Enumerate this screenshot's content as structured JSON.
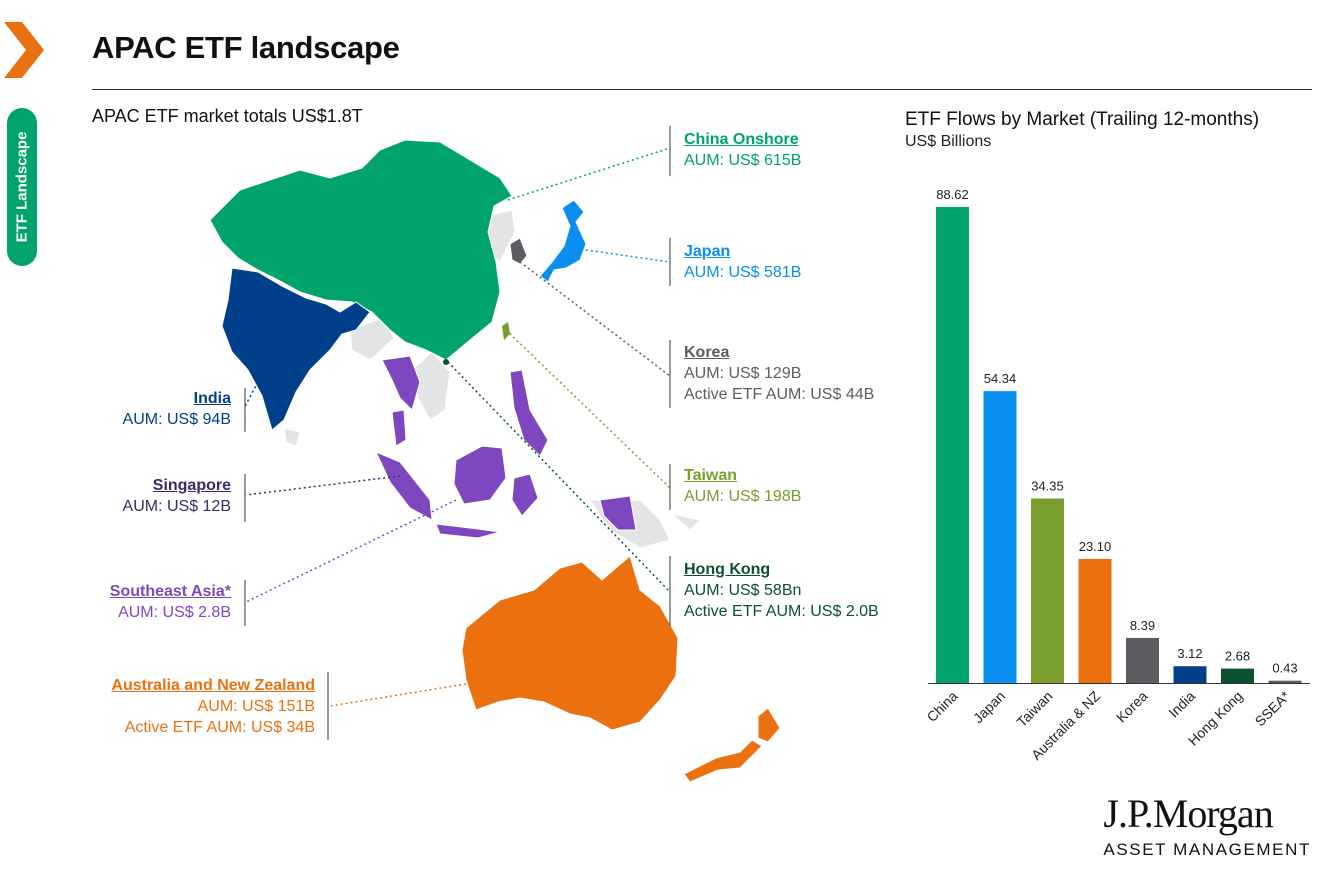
{
  "page": {
    "title": "APAC ETF landscape",
    "side_tab": "ETF Landscape",
    "map_subtitle": "APAC ETF market totals US$1.8T"
  },
  "markets": {
    "china": {
      "name": "China Onshore",
      "aum": "AUM: US$ 615B",
      "color": "#00a36c"
    },
    "japan": {
      "name": "Japan",
      "aum": "AUM: US$ 581B",
      "color": "#0a8ef0"
    },
    "korea": {
      "name": "Korea",
      "aum": "AUM: US$ 129B",
      "active": "Active ETF AUM: US$ 44B",
      "color": "#5b5d61"
    },
    "taiwan": {
      "name": "Taiwan",
      "aum": "AUM: US$ 198B",
      "color": "#7a9e2e"
    },
    "hongkong": {
      "name": "Hong Kong",
      "aum": "AUM: US$ 58Bn",
      "active": "Active ETF AUM: US$ 2.0B",
      "color": "#0b5130"
    },
    "india": {
      "name": "India",
      "aum": "AUM: US$ 94B",
      "color": "#003f8a"
    },
    "singapore": {
      "name": "Singapore",
      "aum": "AUM: US$ 12B",
      "color": "#3c2a66"
    },
    "seasia": {
      "name": "Southeast Asia*",
      "aum": "AUM: US$ 2.8B",
      "color": "#7e47bf"
    },
    "anz": {
      "name": "Australia and New Zealand",
      "aum": "AUM: US$ 151B",
      "active": "Active ETF AUM: US$ 34B",
      "color": "#ea7010"
    }
  },
  "chart_data": {
    "type": "bar",
    "title": "ETF Flows by Market (Trailing 12-months)",
    "ylabel": "US$ Billions",
    "categories": [
      "China",
      "Japan",
      "Taiwan",
      "Australia & NZ",
      "Korea",
      "India",
      "Hong Kong",
      "SSEA*"
    ],
    "values": [
      88.62,
      54.34,
      34.35,
      23.1,
      8.39,
      3.12,
      2.68,
      0.43
    ],
    "value_labels": [
      "88.62",
      "54.34",
      "34.35",
      "23.10",
      "8.39",
      "3.12",
      "2.68",
      "0.43"
    ],
    "colors": [
      "#00a36c",
      "#0a8ef0",
      "#7a9e2e",
      "#ea7010",
      "#5b5d61",
      "#003f8a",
      "#0b5130",
      "#5b5d61"
    ],
    "ylim": [
      0,
      88.62
    ],
    "grid": false,
    "legend": "none"
  },
  "brand": {
    "wordmark": "J.P.Morgan",
    "subline": "ASSET MANAGEMENT",
    "accent": "#ea7010"
  }
}
